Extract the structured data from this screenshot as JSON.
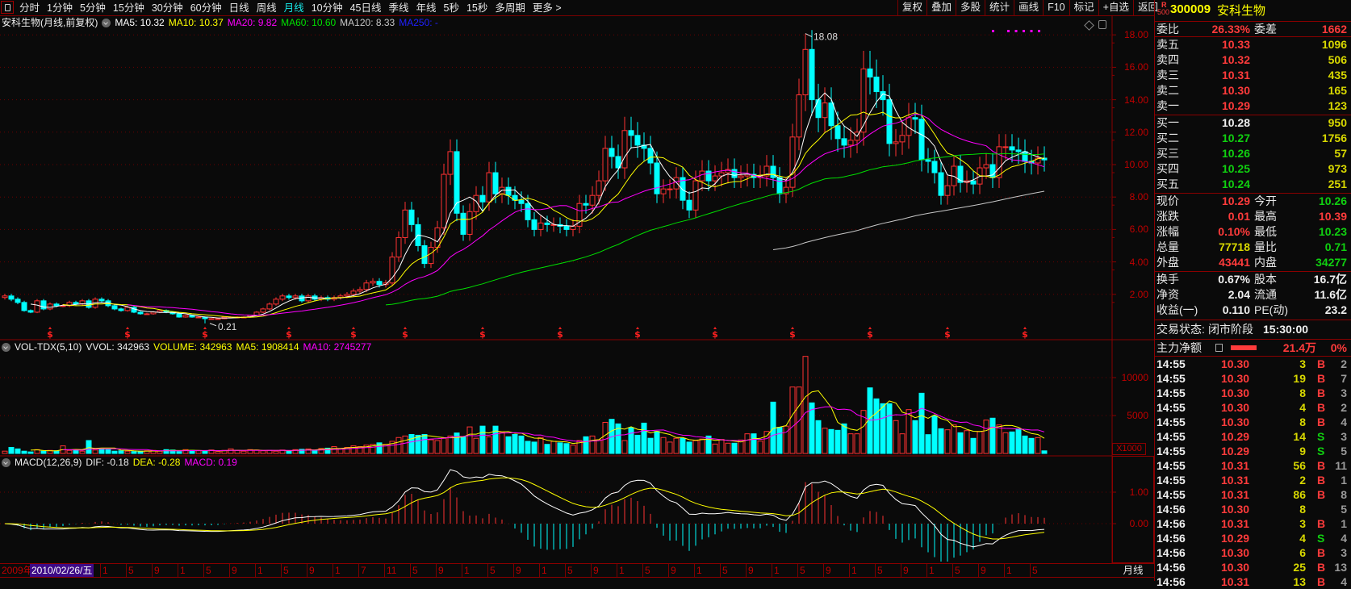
{
  "toolbar": {
    "tabs": [
      "分时",
      "1分钟",
      "5分钟",
      "15分钟",
      "30分钟",
      "60分钟",
      "日线",
      "周线",
      "月线",
      "10分钟",
      "45日线",
      "季线",
      "年线",
      "5秒",
      "15秒",
      "多周期",
      "更多 >"
    ],
    "active_tab": "月线",
    "buttons": [
      "复权",
      "叠加",
      "多股",
      "统计",
      "画线",
      "F10",
      "标记",
      "+自选",
      "返回"
    ]
  },
  "stock": {
    "badge_r": "R",
    "badge_num": "500",
    "code": "300009",
    "name": "安科生物"
  },
  "price_header": {
    "title": "安科生物(月线,前复权)",
    "ma5": "MA5: 10.32",
    "ma10": "MA10: 10.37",
    "ma20": "MA20: 9.82",
    "ma60": "MA60: 10.60",
    "ma120": "MA120: 8.33",
    "ma250": "MA250: -"
  },
  "vol_header": {
    "title": "VOL-TDX(5,10)",
    "vvol": "VVOL: 342963",
    "volume": "VOLUME: 342963",
    "ma5": "MA5: 1908414",
    "ma10": "MA10: 2745277"
  },
  "macd_header": {
    "title": "MACD(12,26,9)",
    "dif": "DIF: -0.18",
    "dea": "DEA: -0.28",
    "macd": "MACD: 0.19"
  },
  "axes": {
    "price_ticks": [
      "18.00",
      "16.00",
      "14.00",
      "12.00",
      "10.00",
      "8.00",
      "6.00",
      "4.00",
      "2.00"
    ],
    "vol_ticks": [
      "10000",
      "5000"
    ],
    "vol_unit": "X1000",
    "macd_ticks": [
      "1.00",
      "0.00"
    ],
    "period": "月线"
  },
  "date_axis": {
    "start": "2009年",
    "cursor": "2010/02/26/五",
    "months": [
      "1",
      "5",
      "9",
      "1",
      "5",
      "9",
      "1",
      "5",
      "9",
      "1",
      "7",
      "11",
      "5",
      "9",
      "1",
      "5",
      "9",
      "1",
      "5",
      "9",
      "1",
      "5",
      "9",
      "1",
      "5",
      "9",
      "1",
      "5",
      "9",
      "1",
      "5",
      "9",
      "1",
      "5",
      "9",
      "1",
      "5"
    ]
  },
  "quote": {
    "weibi_label": "委比",
    "weibi": "26.33%",
    "weicha_label": "委差",
    "weicha": "1662",
    "asks": [
      {
        "label": "卖五",
        "price": "10.33",
        "vol": "1096"
      },
      {
        "label": "卖四",
        "price": "10.32",
        "vol": "506"
      },
      {
        "label": "卖三",
        "price": "10.31",
        "vol": "435"
      },
      {
        "label": "卖二",
        "price": "10.30",
        "vol": "165"
      },
      {
        "label": "卖一",
        "price": "10.29",
        "vol": "123"
      }
    ],
    "bids": [
      {
        "label": "买一",
        "price": "10.28",
        "vol": "950",
        "color": "white"
      },
      {
        "label": "买二",
        "price": "10.27",
        "vol": "1756",
        "color": "green"
      },
      {
        "label": "买三",
        "price": "10.26",
        "vol": "57",
        "color": "green"
      },
      {
        "label": "买四",
        "price": "10.25",
        "vol": "973",
        "color": "green"
      },
      {
        "label": "买五",
        "price": "10.24",
        "vol": "251",
        "color": "green"
      }
    ],
    "stats": [
      {
        "l1": "现价",
        "v1": "10.29",
        "c1": "red",
        "l2": "今开",
        "v2": "10.26",
        "c2": "green"
      },
      {
        "l1": "涨跌",
        "v1": "0.01",
        "c1": "red",
        "l2": "最高",
        "v2": "10.39",
        "c2": "red"
      },
      {
        "l1": "涨幅",
        "v1": "0.10%",
        "c1": "red",
        "l2": "最低",
        "v2": "10.23",
        "c2": "green"
      },
      {
        "l1": "总量",
        "v1": "77718",
        "c1": "yellow",
        "l2": "量比",
        "v2": "0.71",
        "c2": "green"
      },
      {
        "l1": "外盘",
        "v1": "43441",
        "c1": "red",
        "l2": "内盘",
        "v2": "34277",
        "c2": "green"
      }
    ],
    "fundamentals": [
      {
        "l1": "换手",
        "v1": "0.67%",
        "l2": "股本",
        "v2": "16.7亿"
      },
      {
        "l1": "净资",
        "v1": "2.04",
        "l2": "流通",
        "v2": "11.6亿"
      },
      {
        "l1": "收益(一)",
        "v1": "0.110",
        "l2": "PE(动)",
        "v2": "23.2"
      }
    ],
    "status_label": "交易状态:",
    "status": "闭市阶段",
    "status_time": "15:30:00",
    "main_flow_label": "主力净额",
    "main_flow": "21.4万",
    "main_flow_pct": "0%"
  },
  "trades": [
    {
      "time": "14:55",
      "price": "10.30",
      "vol": "3",
      "side": "B",
      "count": "2"
    },
    {
      "time": "14:55",
      "price": "10.30",
      "vol": "19",
      "side": "B",
      "count": "7"
    },
    {
      "time": "14:55",
      "price": "10.30",
      "vol": "8",
      "side": "B",
      "count": "3"
    },
    {
      "time": "14:55",
      "price": "10.30",
      "vol": "4",
      "side": "B",
      "count": "2"
    },
    {
      "time": "14:55",
      "price": "10.30",
      "vol": "8",
      "side": "B",
      "count": "4"
    },
    {
      "time": "14:55",
      "price": "10.29",
      "vol": "14",
      "side": "S",
      "count": "3"
    },
    {
      "time": "14:55",
      "price": "10.29",
      "vol": "9",
      "side": "S",
      "count": "5"
    },
    {
      "time": "14:55",
      "price": "10.31",
      "vol": "56",
      "side": "B",
      "count": "11"
    },
    {
      "time": "14:55",
      "price": "10.31",
      "vol": "2",
      "side": "B",
      "count": "1"
    },
    {
      "time": "14:55",
      "price": "10.31",
      "vol": "86",
      "side": "B",
      "count": "8"
    },
    {
      "time": "14:56",
      "price": "10.30",
      "vol": "8",
      "side": "",
      "count": "5"
    },
    {
      "time": "14:56",
      "price": "10.31",
      "vol": "3",
      "side": "B",
      "count": "1"
    },
    {
      "time": "14:56",
      "price": "10.29",
      "vol": "4",
      "side": "S",
      "count": "4"
    },
    {
      "time": "14:56",
      "price": "10.30",
      "vol": "6",
      "side": "B",
      "count": "3"
    },
    {
      "time": "14:56",
      "price": "10.30",
      "vol": "25",
      "side": "B",
      "count": "13"
    },
    {
      "time": "14:56",
      "price": "10.31",
      "vol": "13",
      "side": "B",
      "count": "4"
    }
  ],
  "colors": {
    "up": "#ff3232",
    "down": "#00ffff",
    "ma5": "#ffffff",
    "ma10": "#ffff00",
    "ma20": "#ff00ff",
    "ma60": "#00e000",
    "ma120": "#c8c8c8",
    "ma250": "#0000ff",
    "axis": "#c00000",
    "grid": "#6a0000"
  },
  "chart_data": {
    "type": "candlestick",
    "period": "月线",
    "price_range": [
      0,
      19
    ],
    "extreme_high": 18.08,
    "extreme_low": 0.21,
    "close": [
      1.9,
      1.7,
      1.5,
      1.0,
      0.9,
      1.6,
      1.1,
      1.4,
      1.3,
      1.3,
      1.5,
      1.4,
      1.6,
      1.2,
      1.7,
      1.6,
      1.3,
      1.1,
      1.0,
      1.2,
      0.9,
      0.8,
      0.8,
      0.9,
      1.0,
      0.9,
      0.8,
      0.6,
      0.7,
      0.6,
      0.6,
      0.5,
      0.5,
      0.5,
      0.6,
      0.6,
      0.6,
      0.6,
      0.7,
      0.9,
      1.1,
      1.4,
      1.7,
      1.9,
      1.8,
      1.9,
      1.6,
      1.9,
      1.7,
      1.8,
      1.7,
      1.8,
      1.9,
      2.0,
      2.2,
      2.3,
      2.7,
      2.8,
      2.6,
      2.7,
      4.3,
      5.5,
      7.2,
      6.3,
      5.0,
      3.9,
      4.9,
      6.1,
      9.4,
      10.8,
      7.0,
      5.7,
      7.1,
      8.1,
      7.7,
      9.5,
      8.2,
      8.6,
      8.1,
      7.8,
      7.6,
      6.6,
      6.0,
      6.4,
      6.3,
      6.3,
      6.2,
      6.0,
      6.2,
      7.6,
      7.5,
      8.1,
      9.0,
      11.0,
      10.5,
      9.8,
      12.1,
      11.8,
      11.2,
      11.0,
      10.1,
      8.2,
      8.5,
      8.5,
      9.2,
      7.8,
      7.2,
      9.0,
      9.6,
      9.0,
      9.3,
      9.5,
      9.7,
      9.2,
      9.3,
      9.4,
      9.2,
      9.3,
      9.9,
      9.2,
      8.2,
      8.6,
      11.7,
      14.3,
      17.1,
      14.0,
      12.9,
      13.8,
      12.4,
      11.6,
      11.2,
      11.5,
      12.0,
      15.9,
      15.4,
      14.5,
      14.0,
      11.3,
      11.4,
      11.8,
      12.9,
      12.8,
      10.3,
      10.2,
      9.5,
      8.1,
      8.7,
      9.9,
      8.9,
      9.0,
      8.8,
      9.8,
      10.0,
      9.2,
      11.1,
      11.1,
      10.9,
      10.8,
      10.2,
      10.1,
      10.4,
      10.29
    ],
    "volume_x1000": [
      300,
      800,
      600,
      300,
      200,
      500,
      300,
      400,
      350,
      1000,
      400,
      500,
      300,
      1700,
      450,
      600,
      500,
      300,
      350,
      300,
      250,
      300,
      350,
      400,
      300,
      500,
      450,
      250,
      500,
      400,
      350,
      300,
      450,
      250,
      400,
      600,
      400,
      300,
      500,
      450,
      350,
      400,
      300,
      450,
      300,
      500,
      550,
      600,
      400,
      650,
      700,
      900,
      600,
      800,
      1000,
      900,
      1100,
      1200,
      1400,
      1200,
      1600,
      2100,
      2300,
      2500,
      2400,
      2500,
      1800,
      1700,
      2000,
      2300,
      2700,
      2200,
      3500,
      2000,
      3600,
      2200,
      3600,
      2800,
      2200,
      2500,
      2300,
      1600,
      1500,
      2100,
      1200,
      1600,
      1400,
      1300,
      1100,
      1700,
      2200,
      2300,
      1800,
      4100,
      4500,
      3900,
      1700,
      3400,
      2400,
      4000,
      2000,
      2900,
      2100,
      1500,
      2000,
      2000,
      1500,
      1700,
      1900,
      2300,
      1240,
      1840,
      1350,
      1350,
      1770,
      2590,
      2590,
      1630,
      2900,
      6770,
      3440,
      3600,
      8760,
      8760,
      12800,
      6670,
      4330,
      3330,
      3160,
      3050,
      3900,
      2590,
      2590,
      5670,
      8650,
      7200,
      6560,
      6560,
      4330,
      2590,
      5780,
      4330,
      7940,
      2480,
      4960,
      3260,
      3120,
      3760,
      2730,
      3010,
      1990,
      2900,
      4400,
      4650,
      3760,
      2730,
      2840,
      3260,
      2300,
      1990,
      2090,
      343
    ],
    "signal_marker_months": [
      7,
      19,
      31,
      44,
      54,
      62,
      74,
      86,
      98,
      110,
      122,
      134,
      146,
      158
    ],
    "signal_marker_symbol": "$",
    "moving_averages": [
      5,
      10,
      20,
      60,
      120
    ],
    "volume_ma": [
      5,
      10
    ],
    "macd_params": [
      12,
      26,
      9
    ]
  }
}
